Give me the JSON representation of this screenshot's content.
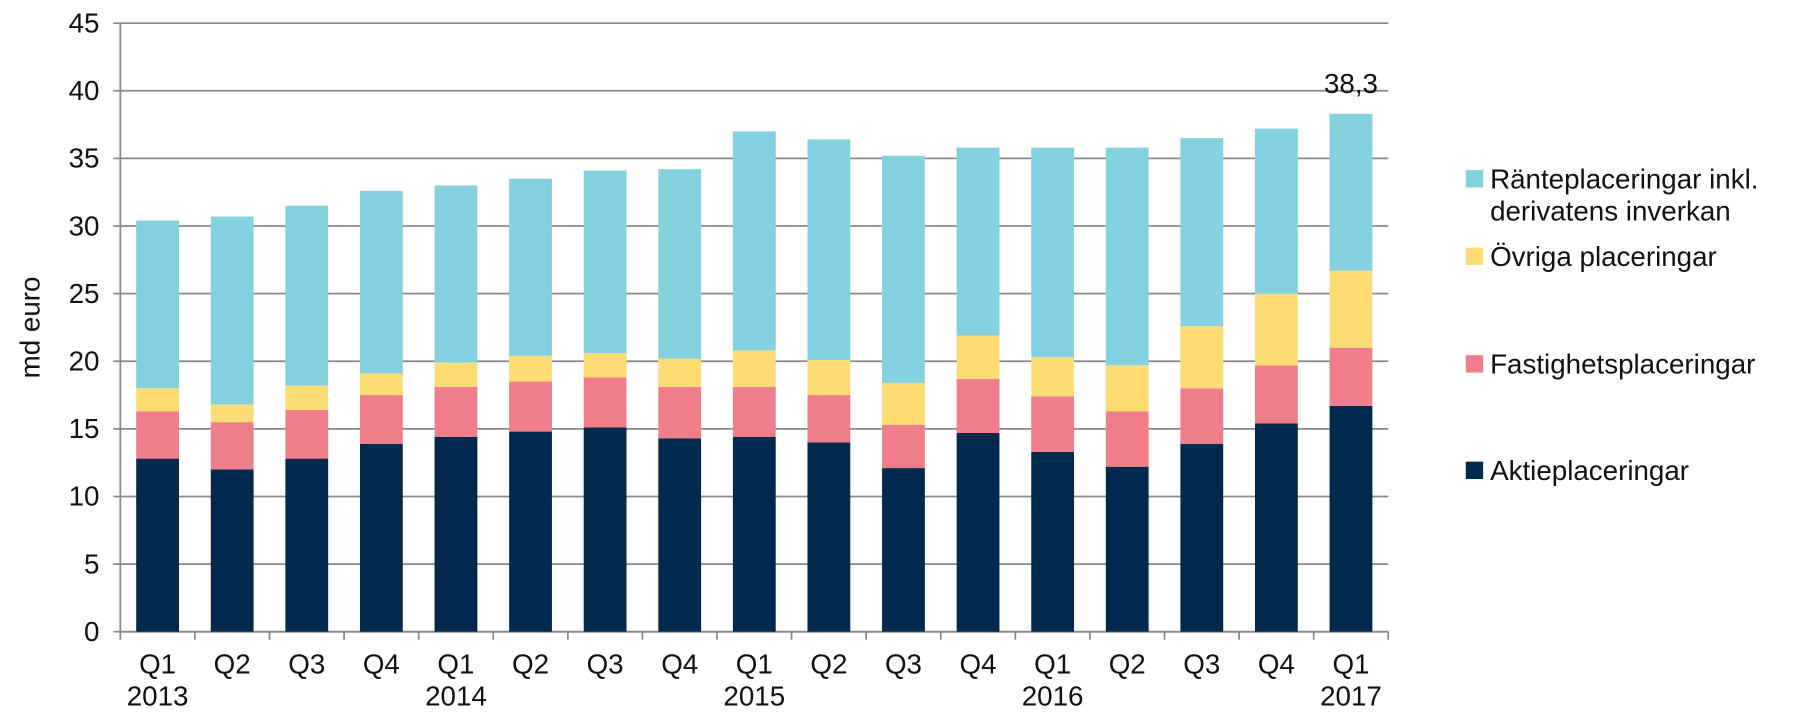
{
  "chart_data": {
    "type": "stacked_bar",
    "y_label": "md euro",
    "categories": [
      "Q1\n2013",
      "Q2",
      "Q3",
      "Q4",
      "Q1\n2014",
      "Q2",
      "Q3",
      "Q4",
      "Q1\n2015",
      "Q2",
      "Q3",
      "Q4",
      "Q1\n2016",
      "Q2",
      "Q3",
      "Q4",
      "Q1\n2017"
    ],
    "series": [
      {
        "name": "Aktieplaceringar",
        "color": "#00294d",
        "values": [
          12.8,
          12.0,
          12.8,
          13.9,
          14.4,
          14.8,
          15.1,
          14.3,
          14.4,
          14.0,
          12.1,
          14.7,
          13.3,
          12.2,
          13.9,
          15.4,
          16.7
        ]
      },
      {
        "name": "Fastighetsplaceringar",
        "color": "#f07d8a",
        "values": [
          3.5,
          3.5,
          3.6,
          3.6,
          3.7,
          3.7,
          3.7,
          3.8,
          3.7,
          3.5,
          3.2,
          4.0,
          4.1,
          4.1,
          4.1,
          4.3,
          4.3
        ]
      },
      {
        "name": "Övriga placeringar",
        "color": "#fddc75",
        "values": [
          1.7,
          1.3,
          1.8,
          1.6,
          1.8,
          1.9,
          1.8,
          2.1,
          2.7,
          2.6,
          3.1,
          3.2,
          2.9,
          3.4,
          4.6,
          5.3,
          5.7
        ]
      },
      {
        "name": "Ränteplaceringar inkl.\nderivatens inverkan",
        "color": "#83d0df",
        "values": [
          12.4,
          13.9,
          13.3,
          13.5,
          13.1,
          13.1,
          13.5,
          14.0,
          16.2,
          16.3,
          16.8,
          13.9,
          15.5,
          16.1,
          13.9,
          12.2,
          11.6
        ]
      }
    ],
    "annotations": [
      {
        "text": "38,3"
      }
    ],
    "ylim": [
      0,
      45
    ],
    "yticks": [
      0,
      5,
      10,
      15,
      20,
      25,
      30,
      35,
      40,
      45
    ],
    "grid": true,
    "legend": "right"
  }
}
